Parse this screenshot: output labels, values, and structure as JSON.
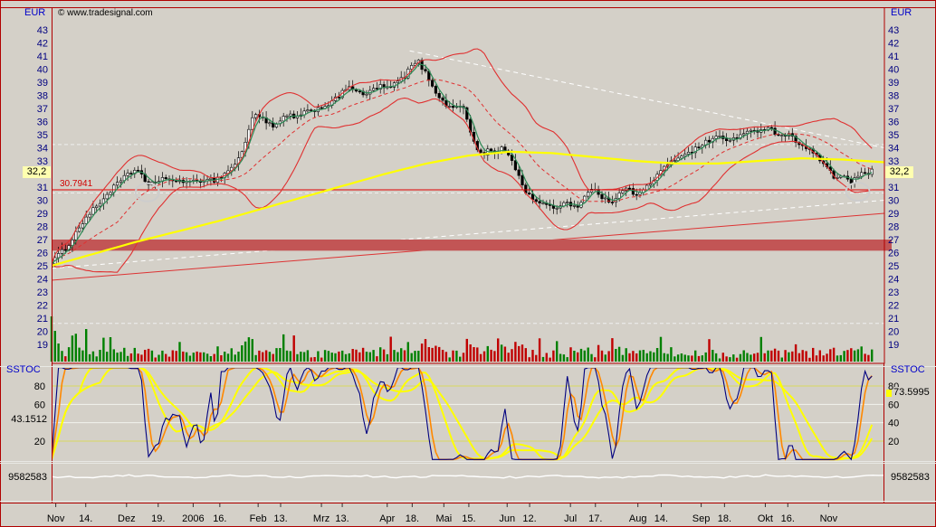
{
  "labels": {
    "copyright": "© www.tradesignal.com",
    "eur": "EUR",
    "sstoc": "SSTOC",
    "current_price": "32,2",
    "level": "30.7941",
    "stoch_left": "43.1512",
    "stoch_right": "73.5995",
    "vol_left": "9582583",
    "vol_right": "9582583"
  },
  "colors": {
    "background": "#d4d0c8",
    "frame": "#b00000",
    "axis_text": "#000080",
    "date_text": "#000000",
    "bollinger": "#e03030",
    "ma_fast": "#2e8b57",
    "ma_slow": "#ffff00",
    "level_line": "#e00000",
    "support_band": "#c25555",
    "trend_white": "#ffffff",
    "trend_red": "#dd3333",
    "stoch_k": "#000080",
    "stoch_d": "#ff8800",
    "stoch_slow": "#ffff00",
    "volume_up": "#008000",
    "volume_down": "#c00000",
    "current_price_bg": "#ffffb0",
    "grid_dashed": "#efefef",
    "stoch_band_line": "#d8d860",
    "stoch_grid_line": "#f2f2ee",
    "vol_ind_line": "#ffffff",
    "annotation_circle": "#cdcdcd"
  },
  "chart_data": {
    "type": "candlestick",
    "title": "",
    "unit": "EUR",
    "bars": 238,
    "current_price": 32.2,
    "ylim": [
      19,
      43
    ],
    "y_ticks": [
      43,
      42,
      41,
      40,
      39,
      38,
      37,
      36,
      35,
      34,
      33,
      32,
      31,
      30,
      29,
      28,
      27,
      26,
      25,
      24,
      23,
      22,
      21,
      20,
      19
    ],
    "level_line": {
      "value": 30.7941,
      "label": "30.7941"
    },
    "support_band": {
      "from": 26.15,
      "to": 27.0
    },
    "dashed_levels": [
      34.25,
      30.55,
      20.6
    ],
    "trendlines": [
      {
        "name": "descending-resistance",
        "style": "dashed",
        "color": "white",
        "x1": 0.43,
        "y1": 41.4,
        "x2": 1.0,
        "y2": 34.0
      },
      {
        "name": "ascending-support-white",
        "style": "dashed",
        "color": "white",
        "x1": 0.0,
        "y1": 24.8,
        "x2": 1.0,
        "y2": 30.0
      },
      {
        "name": "ascending-support-red",
        "style": "solid",
        "color": "red",
        "x1": 0.0,
        "y1": 23.9,
        "x2": 1.0,
        "y2": 29.0
      }
    ],
    "annotations": [
      {
        "type": "circle",
        "t": 0.115,
        "price": 30.6
      },
      {
        "type": "circle",
        "t": 0.968,
        "price": 30.65
      }
    ],
    "price_close_path": [
      [
        0.0,
        25.3
      ],
      [
        0.01,
        25.9
      ],
      [
        0.02,
        26.6
      ],
      [
        0.03,
        27.6
      ],
      [
        0.04,
        28.6
      ],
      [
        0.055,
        29.6
      ],
      [
        0.07,
        30.7
      ],
      [
        0.085,
        31.6
      ],
      [
        0.095,
        32.1
      ],
      [
        0.105,
        32.4
      ],
      [
        0.115,
        31.0
      ],
      [
        0.125,
        31.4
      ],
      [
        0.135,
        31.8
      ],
      [
        0.145,
        31.3
      ],
      [
        0.155,
        31.6
      ],
      [
        0.165,
        31.3
      ],
      [
        0.175,
        31.4
      ],
      [
        0.185,
        31.7
      ],
      [
        0.195,
        31.5
      ],
      [
        0.205,
        31.9
      ],
      [
        0.215,
        32.4
      ],
      [
        0.225,
        33.2
      ],
      [
        0.235,
        34.8
      ],
      [
        0.243,
        36.8
      ],
      [
        0.25,
        36.4
      ],
      [
        0.258,
        36.0
      ],
      [
        0.266,
        35.5
      ],
      [
        0.275,
        36.1
      ],
      [
        0.285,
        36.5
      ],
      [
        0.295,
        36.3
      ],
      [
        0.305,
        36.7
      ],
      [
        0.315,
        36.9
      ],
      [
        0.324,
        37.1
      ],
      [
        0.334,
        37.4
      ],
      [
        0.345,
        37.9
      ],
      [
        0.357,
        38.8
      ],
      [
        0.365,
        38.3
      ],
      [
        0.375,
        38.0
      ],
      [
        0.385,
        38.4
      ],
      [
        0.395,
        38.7
      ],
      [
        0.403,
        38.5
      ],
      [
        0.413,
        38.9
      ],
      [
        0.423,
        39.4
      ],
      [
        0.433,
        40.3
      ],
      [
        0.44,
        40.6
      ],
      [
        0.448,
        39.8
      ],
      [
        0.456,
        38.9
      ],
      [
        0.464,
        38.0
      ],
      [
        0.471,
        37.4
      ],
      [
        0.48,
        37.0
      ],
      [
        0.488,
        37.4
      ],
      [
        0.496,
        36.8
      ],
      [
        0.503,
        35.2
      ],
      [
        0.51,
        33.9
      ],
      [
        0.518,
        33.5
      ],
      [
        0.526,
        33.9
      ],
      [
        0.534,
        33.5
      ],
      [
        0.542,
        34.0
      ],
      [
        0.55,
        33.4
      ],
      [
        0.558,
        32.3
      ],
      [
        0.566,
        31.0
      ],
      [
        0.574,
        30.3
      ],
      [
        0.582,
        30.0
      ],
      [
        0.59,
        29.7
      ],
      [
        0.6,
        29.4
      ],
      [
        0.61,
        29.6
      ],
      [
        0.62,
        29.9
      ],
      [
        0.63,
        29.4
      ],
      [
        0.64,
        30.3
      ],
      [
        0.65,
        30.9
      ],
      [
        0.66,
        30.3
      ],
      [
        0.67,
        29.7
      ],
      [
        0.68,
        30.5
      ],
      [
        0.69,
        31.1
      ],
      [
        0.7,
        30.3
      ],
      [
        0.71,
        30.7
      ],
      [
        0.72,
        31.4
      ],
      [
        0.73,
        32.1
      ],
      [
        0.74,
        32.7
      ],
      [
        0.75,
        33.2
      ],
      [
        0.76,
        33.6
      ],
      [
        0.77,
        33.8
      ],
      [
        0.78,
        34.2
      ],
      [
        0.79,
        34.6
      ],
      [
        0.8,
        34.9
      ],
      [
        0.81,
        34.5
      ],
      [
        0.82,
        34.8
      ],
      [
        0.83,
        35.0
      ],
      [
        0.84,
        35.2
      ],
      [
        0.85,
        35.4
      ],
      [
        0.86,
        35.6
      ],
      [
        0.868,
        35.2
      ],
      [
        0.875,
        34.9
      ],
      [
        0.883,
        35.1
      ],
      [
        0.89,
        34.7
      ],
      [
        0.9,
        34.3
      ],
      [
        0.91,
        33.8
      ],
      [
        0.92,
        33.3
      ],
      [
        0.93,
        32.5
      ],
      [
        0.94,
        31.7
      ],
      [
        0.95,
        31.9
      ],
      [
        0.96,
        31.4
      ],
      [
        0.97,
        31.9
      ],
      [
        0.985,
        32.2
      ]
    ],
    "ma_yellow_path": [
      [
        0.0,
        25.0
      ],
      [
        0.05,
        25.9
      ],
      [
        0.1,
        26.8
      ],
      [
        0.15,
        27.6
      ],
      [
        0.2,
        28.4
      ],
      [
        0.25,
        29.3
      ],
      [
        0.3,
        30.2
      ],
      [
        0.35,
        31.1
      ],
      [
        0.4,
        32.0
      ],
      [
        0.45,
        32.8
      ],
      [
        0.5,
        33.4
      ],
      [
        0.55,
        33.7
      ],
      [
        0.6,
        33.6
      ],
      [
        0.65,
        33.3
      ],
      [
        0.7,
        33.0
      ],
      [
        0.75,
        32.8
      ],
      [
        0.8,
        32.8
      ],
      [
        0.85,
        33.0
      ],
      [
        0.9,
        33.2
      ],
      [
        0.95,
        33.1
      ],
      [
        1.0,
        32.9
      ]
    ],
    "indicators": {
      "bollinger": {
        "window": 20,
        "mult": 2
      },
      "ma_fast_window": 4,
      "stochastic": {
        "name": "SSTOC",
        "ticks": [
          80,
          60,
          40,
          20
        ],
        "band": [
          20,
          80
        ],
        "left_value": 43.1512,
        "right_value": 73.5995
      },
      "volume_indicator": {
        "left_value": 9582583,
        "right_value": 9582583
      }
    },
    "x_axis_labels": [
      {
        "t": 0.005,
        "text": "Nov"
      },
      {
        "t": 0.041,
        "text": "14."
      },
      {
        "t": 0.09,
        "text": "Dez"
      },
      {
        "t": 0.128,
        "text": "19."
      },
      {
        "t": 0.17,
        "text": "2006"
      },
      {
        "t": 0.202,
        "text": "16."
      },
      {
        "t": 0.248,
        "text": "Feb"
      },
      {
        "t": 0.275,
        "text": "13."
      },
      {
        "t": 0.324,
        "text": "Mrz"
      },
      {
        "t": 0.349,
        "text": "13."
      },
      {
        "t": 0.403,
        "text": "Apr"
      },
      {
        "t": 0.433,
        "text": "18."
      },
      {
        "t": 0.471,
        "text": "Mai"
      },
      {
        "t": 0.501,
        "text": "15."
      },
      {
        "t": 0.547,
        "text": "Jun"
      },
      {
        "t": 0.574,
        "text": "12."
      },
      {
        "t": 0.623,
        "text": "Jul"
      },
      {
        "t": 0.653,
        "text": "17."
      },
      {
        "t": 0.704,
        "text": "Aug"
      },
      {
        "t": 0.732,
        "text": "14."
      },
      {
        "t": 0.78,
        "text": "Sep"
      },
      {
        "t": 0.808,
        "text": "18."
      },
      {
        "t": 0.857,
        "text": "Okt"
      },
      {
        "t": 0.884,
        "text": "16."
      },
      {
        "t": 0.933,
        "text": "Nov"
      }
    ]
  }
}
